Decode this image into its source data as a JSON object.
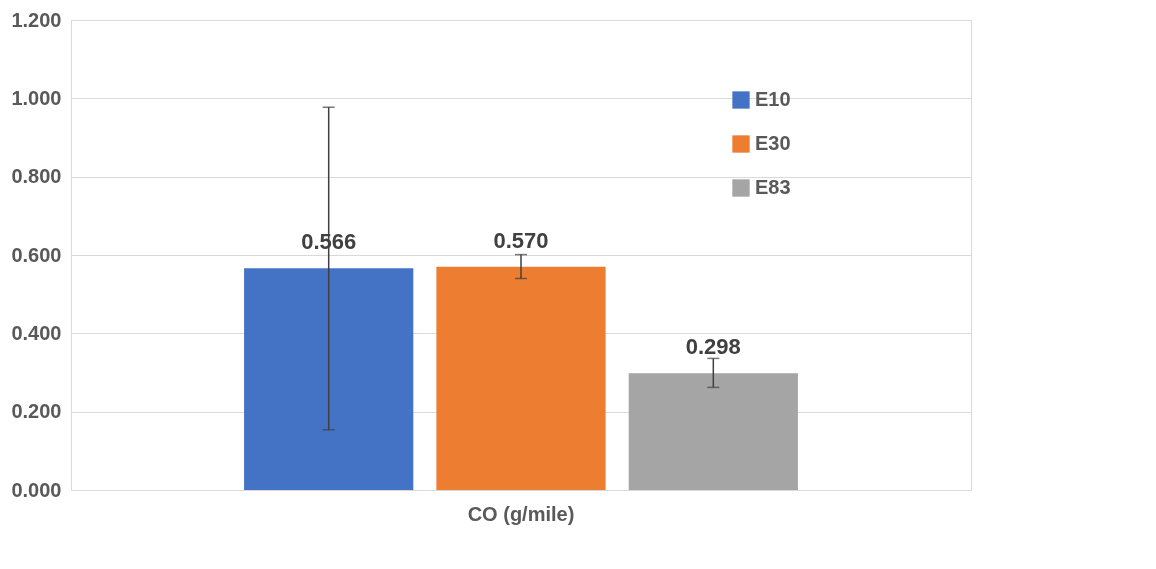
{
  "chart_data": {
    "type": "bar",
    "categories": [
      "CO (g/mile)"
    ],
    "series": [
      {
        "name": "E10",
        "color": "#4472c4",
        "values": [
          0.566
        ],
        "errors": [
          [
            0.154,
            0.977
          ]
        ],
        "value_labels": [
          "0.566"
        ]
      },
      {
        "name": "E30",
        "color": "#ed7d31",
        "values": [
          0.57
        ],
        "errors": [
          [
            0.54,
            0.601
          ]
        ],
        "value_labels": [
          "0.570"
        ]
      },
      {
        "name": "E83",
        "color": "#a5a5a5",
        "values": [
          0.298
        ],
        "errors": [
          [
            0.262,
            0.336
          ]
        ],
        "value_labels": [
          "0.298"
        ]
      }
    ],
    "ylim": [
      0,
      1.2
    ],
    "yticks": [
      {
        "value": 0,
        "label": "0.000"
      },
      {
        "value": 0.2,
        "label": "0.200"
      },
      {
        "value": 0.4,
        "label": "0.400"
      },
      {
        "value": 0.6,
        "label": "0.600"
      },
      {
        "value": 0.8,
        "label": "0.800"
      },
      {
        "value": 1.0,
        "label": "1.000"
      },
      {
        "value": 1.2,
        "label": "1.200"
      }
    ],
    "grid": "y",
    "legend": "top right"
  }
}
